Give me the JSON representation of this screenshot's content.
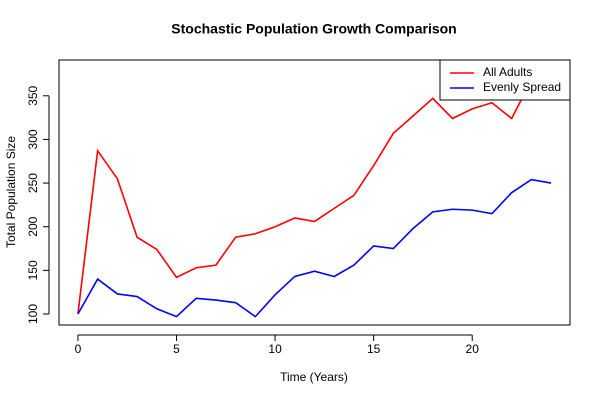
{
  "chart_data": {
    "type": "line",
    "title": "Stochastic Population Growth Comparison",
    "x_label": "Time (Years)",
    "y_label": "Total Population Size",
    "x": [
      0,
      1,
      2,
      3,
      4,
      5,
      6,
      7,
      8,
      9,
      10,
      11,
      12,
      13,
      14,
      15,
      16,
      17,
      18,
      19,
      20,
      21,
      22,
      23,
      24
    ],
    "series": [
      {
        "name": "All Adults",
        "color": "#ff0000",
        "values": [
          100,
          287,
          255,
          188,
          174,
          142,
          153,
          156,
          188,
          192,
          200,
          210,
          206,
          221,
          236,
          270,
          307,
          327,
          347,
          324,
          335,
          342,
          324,
          368,
          380
        ]
      },
      {
        "name": "Evenly Spread",
        "color": "#0000ff",
        "values": [
          100,
          140,
          123,
          120,
          106,
          97,
          118,
          116,
          113,
          97,
          122,
          143,
          149,
          143,
          156,
          178,
          175,
          198,
          217,
          220,
          219,
          215,
          239,
          254,
          250
        ]
      }
    ],
    "xlim": [
      -0.96,
      24.96
    ],
    "ylim": [
      87.4,
      391
    ],
    "xticks": [
      0,
      5,
      10,
      15,
      20
    ],
    "yticks": [
      100,
      150,
      200,
      250,
      300,
      350
    ],
    "legend": "top-right"
  }
}
